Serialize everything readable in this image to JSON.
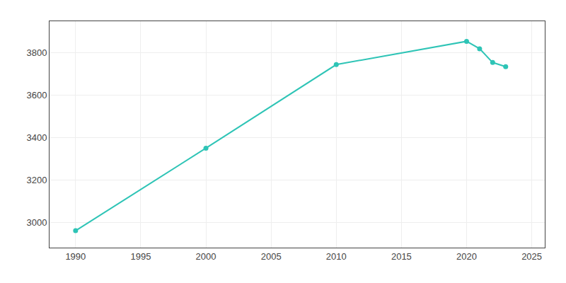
{
  "chart_data": {
    "type": "line",
    "x": [
      1990,
      2000,
      2010,
      2020,
      2021,
      2022,
      2023
    ],
    "values": [
      2960,
      3350,
      3745,
      3855,
      3820,
      3755,
      3735
    ],
    "color": "#2ec4b6",
    "marker": "circle",
    "xlim": [
      1988,
      2026
    ],
    "xticks": [
      1990,
      1995,
      2000,
      2005,
      2010,
      2015,
      2020,
      2025
    ],
    "ylim": [
      2880,
      3950
    ],
    "yticks": [
      3000,
      3200,
      3400,
      3600,
      3800
    ],
    "grid": true
  }
}
